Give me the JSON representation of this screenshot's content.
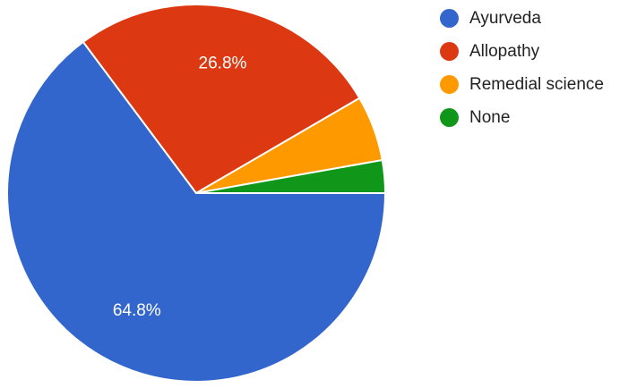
{
  "chart_data": {
    "type": "pie",
    "title": "",
    "slices": [
      {
        "label": "Ayurveda",
        "value": 64.8,
        "color": "#3366cc",
        "value_label": "64.8%"
      },
      {
        "label": "Allopathy",
        "value": 26.8,
        "color": "#dc3912",
        "value_label": "26.8%"
      },
      {
        "label": "Remedial science",
        "value": 5.6,
        "color": "#ff9900",
        "value_label": ""
      },
      {
        "label": "None",
        "value": 2.8,
        "color": "#109618",
        "value_label": ""
      }
    ],
    "legend_position": "right"
  }
}
